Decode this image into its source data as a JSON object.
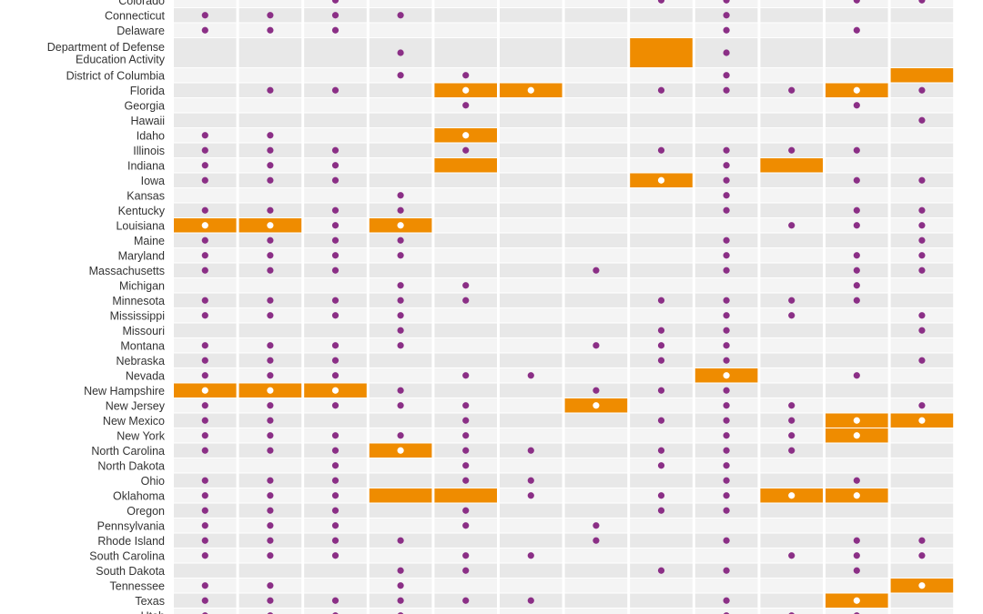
{
  "chart_data": {
    "type": "table",
    "title": "",
    "xlabel": "",
    "ylabel": "",
    "legend": "none",
    "colors": {
      "dot": "#8b2f86",
      "highlight": "#ef8c00",
      "highlight_dot": "#ffffff",
      "row_light": "#f4f4f4",
      "row_dark": "#e8e8e8"
    },
    "rows": [
      "Colorado",
      "Connecticut",
      "Delaware",
      "Department of Defense\nEducation Activity",
      "District of Columbia",
      "Florida",
      "Georgia",
      "Hawaii",
      "Idaho",
      "Illinois",
      "Indiana",
      "Iowa",
      "Kansas",
      "Kentucky",
      "Louisiana",
      "Maine",
      "Maryland",
      "Massachusetts",
      "Michigan",
      "Minnesota",
      "Mississippi",
      "Missouri",
      "Montana",
      "Nebraska",
      "Nevada",
      "New Hampshire",
      "New Jersey",
      "New Mexico",
      "New York",
      "North Carolina",
      "North Dakota",
      "Ohio",
      "Oklahoma",
      "Oregon",
      "Pennsylvania",
      "Rhode Island",
      "South Carolina",
      "South Dakota",
      "Tennessee",
      "Texas",
      "Utah"
    ],
    "columns": 12,
    "dots": [
      [
        3,
        8,
        9,
        11,
        12
      ],
      [
        1,
        2,
        3,
        4,
        9
      ],
      [
        1,
        2,
        3,
        9,
        11
      ],
      [
        4,
        9
      ],
      [
        4,
        5,
        9
      ],
      [
        2,
        3,
        5,
        6,
        8,
        9,
        10,
        11,
        12
      ],
      [
        5,
        11
      ],
      [
        12
      ],
      [
        1,
        2,
        5
      ],
      [
        1,
        2,
        3,
        5,
        8,
        9,
        10,
        11
      ],
      [
        1,
        2,
        3,
        9
      ],
      [
        1,
        2,
        3,
        8,
        9,
        11,
        12
      ],
      [
        4,
        9
      ],
      [
        1,
        2,
        3,
        4,
        9,
        11,
        12
      ],
      [
        1,
        2,
        3,
        4,
        10,
        11,
        12
      ],
      [
        1,
        2,
        3,
        4,
        9,
        12
      ],
      [
        1,
        2,
        3,
        4,
        9,
        11,
        12
      ],
      [
        1,
        2,
        3,
        7,
        9,
        11,
        12
      ],
      [
        4,
        5,
        11
      ],
      [
        1,
        2,
        3,
        4,
        5,
        8,
        9,
        10,
        11
      ],
      [
        1,
        2,
        3,
        4,
        9,
        10,
        12
      ],
      [
        4,
        8,
        9,
        12
      ],
      [
        1,
        2,
        3,
        4,
        7,
        8,
        9
      ],
      [
        1,
        2,
        3,
        8,
        9,
        12
      ],
      [
        1,
        2,
        3,
        5,
        6,
        9,
        11
      ],
      [
        1,
        2,
        3,
        4,
        7,
        8,
        9
      ],
      [
        1,
        2,
        3,
        4,
        5,
        7,
        9,
        10,
        12
      ],
      [
        1,
        2,
        5,
        8,
        9,
        10,
        11,
        12
      ],
      [
        1,
        2,
        3,
        4,
        5,
        9,
        10,
        11
      ],
      [
        1,
        2,
        3,
        4,
        5,
        6,
        8,
        9,
        10
      ],
      [
        3,
        5,
        8,
        9
      ],
      [
        1,
        2,
        3,
        5,
        6,
        9,
        11
      ],
      [
        1,
        2,
        3,
        6,
        8,
        9,
        10,
        11
      ],
      [
        1,
        2,
        3,
        5,
        8,
        9
      ],
      [
        1,
        2,
        3,
        5,
        7
      ],
      [
        1,
        2,
        3,
        4,
        7,
        9,
        11,
        12
      ],
      [
        1,
        2,
        3,
        5,
        6,
        10,
        11,
        12
      ],
      [
        4,
        5,
        8,
        9,
        11
      ],
      [
        1,
        2,
        4,
        12
      ],
      [
        1,
        2,
        3,
        4,
        5,
        6,
        9,
        11
      ],
      [
        1,
        2,
        3,
        4,
        9,
        10,
        11
      ]
    ],
    "highlights": [
      [],
      [],
      [],
      [
        8
      ],
      [
        12
      ],
      [
        5,
        6,
        11
      ],
      [],
      [],
      [
        5
      ],
      [],
      [
        5,
        10
      ],
      [
        8
      ],
      [],
      [],
      [
        1,
        2,
        4
      ],
      [],
      [],
      [],
      [],
      [],
      [],
      [],
      [],
      [],
      [
        9
      ],
      [
        1,
        2,
        3
      ],
      [
        7
      ],
      [
        11,
        12
      ],
      [
        11
      ],
      [
        4
      ],
      [],
      [],
      [
        4,
        5,
        10,
        11
      ],
      [],
      [],
      [],
      [],
      [],
      [
        12
      ],
      [
        11
      ],
      []
    ]
  }
}
